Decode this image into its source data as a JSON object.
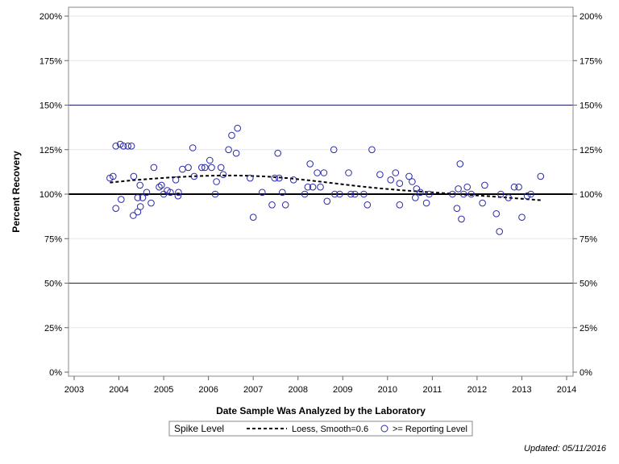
{
  "chart_data": {
    "type": "scatter",
    "xlabel": "Date Sample Was Analyzed by the Laboratory",
    "ylabel": "Percent Recovery",
    "xlim": [
      2003,
      2014
    ],
    "ylim": [
      0,
      200
    ],
    "x_ticks": [
      "2003",
      "2004",
      "2005",
      "2006",
      "2007",
      "2008",
      "2009",
      "2010",
      "2011",
      "2012",
      "2013",
      "2014"
    ],
    "y_ticks": [
      "0%",
      "25%",
      "50%",
      "75%",
      "100%",
      "125%",
      "150%",
      "175%",
      "200%"
    ],
    "y_tick_values": [
      0,
      25,
      50,
      75,
      100,
      125,
      150,
      175,
      200
    ],
    "reference_lines": [
      {
        "y": 50,
        "color": "#1a1a6e"
      },
      {
        "y": 100,
        "color": "#000000"
      },
      {
        "y": 150,
        "color": "#1a1a6e"
      }
    ],
    "grid": true,
    "colors": {
      "points": "#2a2aa8",
      "loess": "#000000"
    },
    "legend": {
      "placement": "bottom",
      "label": "Spike Level",
      "items": [
        "Loess, Smooth=0.6",
        ">= Reporting Level"
      ]
    },
    "footnote": "Updated: 05/11/2016",
    "series": [
      {
        "name": ">= Reporting Level",
        "style": "open-circle",
        "points": [
          [
            2003.8,
            109
          ],
          [
            2003.87,
            110
          ],
          [
            2003.93,
            127
          ],
          [
            2003.93,
            92
          ],
          [
            2004.03,
            128
          ],
          [
            2004.05,
            97
          ],
          [
            2004.1,
            127
          ],
          [
            2004.2,
            127
          ],
          [
            2004.28,
            127
          ],
          [
            2004.32,
            88
          ],
          [
            2004.33,
            110
          ],
          [
            2004.42,
            98
          ],
          [
            2004.42,
            90
          ],
          [
            2004.47,
            105
          ],
          [
            2004.48,
            93
          ],
          [
            2004.53,
            98
          ],
          [
            2004.62,
            101
          ],
          [
            2004.72,
            95
          ],
          [
            2004.78,
            115
          ],
          [
            2004.9,
            104
          ],
          [
            2004.95,
            105
          ],
          [
            2005.0,
            100
          ],
          [
            2005.08,
            102
          ],
          [
            2005.15,
            101
          ],
          [
            2005.27,
            108
          ],
          [
            2005.32,
            99
          ],
          [
            2005.33,
            101
          ],
          [
            2005.42,
            114
          ],
          [
            2005.55,
            115
          ],
          [
            2005.65,
            126
          ],
          [
            2005.68,
            110
          ],
          [
            2005.85,
            115
          ],
          [
            2005.92,
            115
          ],
          [
            2006.03,
            119
          ],
          [
            2006.07,
            115
          ],
          [
            2006.15,
            100
          ],
          [
            2006.18,
            107
          ],
          [
            2006.28,
            115
          ],
          [
            2006.33,
            111
          ],
          [
            2006.45,
            125
          ],
          [
            2006.52,
            133
          ],
          [
            2006.62,
            123
          ],
          [
            2006.65,
            137
          ],
          [
            2006.93,
            109
          ],
          [
            2007.0,
            87
          ],
          [
            2007.2,
            101
          ],
          [
            2007.42,
            94
          ],
          [
            2007.48,
            109
          ],
          [
            2007.55,
            123
          ],
          [
            2007.58,
            109
          ],
          [
            2007.65,
            101
          ],
          [
            2007.72,
            94
          ],
          [
            2007.9,
            108
          ],
          [
            2008.15,
            100
          ],
          [
            2008.22,
            104
          ],
          [
            2008.27,
            117
          ],
          [
            2008.33,
            104
          ],
          [
            2008.43,
            112
          ],
          [
            2008.5,
            104
          ],
          [
            2008.58,
            112
          ],
          [
            2008.65,
            96
          ],
          [
            2008.8,
            125
          ],
          [
            2008.82,
            100
          ],
          [
            2008.93,
            100
          ],
          [
            2009.13,
            112
          ],
          [
            2009.18,
            100
          ],
          [
            2009.27,
            100
          ],
          [
            2009.47,
            100
          ],
          [
            2009.55,
            94
          ],
          [
            2009.65,
            125
          ],
          [
            2009.83,
            111
          ],
          [
            2010.07,
            108
          ],
          [
            2010.18,
            112
          ],
          [
            2010.27,
            106
          ],
          [
            2010.27,
            94
          ],
          [
            2010.48,
            110
          ],
          [
            2010.55,
            107
          ],
          [
            2010.62,
            98
          ],
          [
            2010.65,
            103
          ],
          [
            2010.73,
            101
          ],
          [
            2010.87,
            95
          ],
          [
            2010.93,
            100
          ],
          [
            2011.45,
            100
          ],
          [
            2011.55,
            92
          ],
          [
            2011.58,
            103
          ],
          [
            2011.62,
            117
          ],
          [
            2011.65,
            86
          ],
          [
            2011.7,
            100
          ],
          [
            2011.78,
            104
          ],
          [
            2011.87,
            100
          ],
          [
            2012.12,
            95
          ],
          [
            2012.17,
            105
          ],
          [
            2012.43,
            89
          ],
          [
            2012.5,
            79
          ],
          [
            2012.53,
            100
          ],
          [
            2012.7,
            98
          ],
          [
            2012.83,
            104
          ],
          [
            2012.93,
            104
          ],
          [
            2013.0,
            87
          ],
          [
            2013.12,
            99
          ],
          [
            2013.2,
            100
          ],
          [
            2013.42,
            110
          ]
        ]
      },
      {
        "name": "Loess, Smooth=0.6",
        "style": "dashed-line",
        "points": [
          [
            2003.8,
            106.5
          ],
          [
            2004.3,
            107.8
          ],
          [
            2004.8,
            108.8
          ],
          [
            2005.3,
            109.6
          ],
          [
            2005.8,
            110.2
          ],
          [
            2006.3,
            110.5
          ],
          [
            2006.8,
            110.4
          ],
          [
            2007.3,
            109.9
          ],
          [
            2007.8,
            108.9
          ],
          [
            2008.3,
            107.6
          ],
          [
            2008.8,
            106.1
          ],
          [
            2009.3,
            104.6
          ],
          [
            2009.8,
            103.3
          ],
          [
            2010.3,
            102.2
          ],
          [
            2010.8,
            101.3
          ],
          [
            2011.3,
            100.5
          ],
          [
            2011.8,
            99.6
          ],
          [
            2012.3,
            98.8
          ],
          [
            2012.8,
            97.8
          ],
          [
            2013.42,
            96.6
          ]
        ]
      }
    ]
  }
}
